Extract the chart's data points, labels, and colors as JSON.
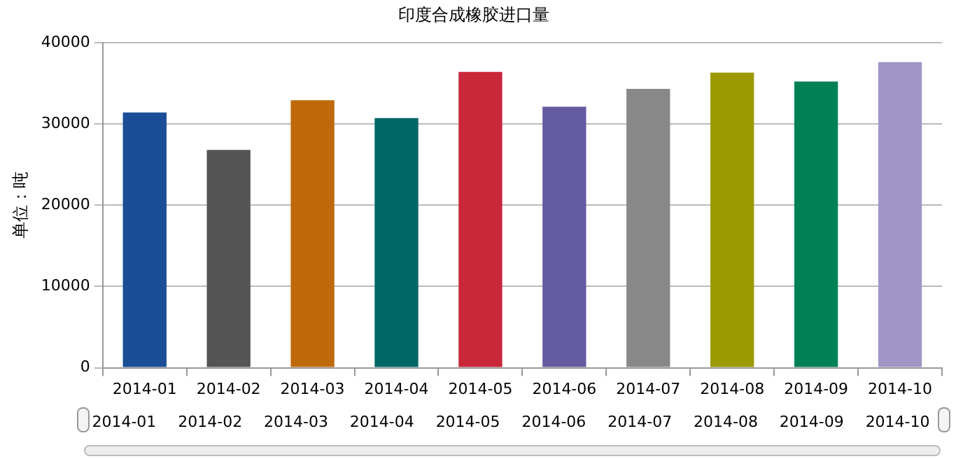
{
  "chart_data": {
    "type": "bar",
    "title": "印度合成橡胶进口量",
    "ylabel": "单位：吨",
    "categories": [
      "2014-01",
      "2014-02",
      "2014-03",
      "2014-04",
      "2014-05",
      "2014-06",
      "2014-07",
      "2014-08",
      "2014-09",
      "2014-10"
    ],
    "values": [
      31400,
      26800,
      32900,
      30700,
      36400,
      32100,
      34300,
      36300,
      35200,
      37600
    ],
    "colors": [
      "#1a4e96",
      "#555555",
      "#be6a0a",
      "#006666",
      "#c8283a",
      "#635aa0",
      "#888888",
      "#9c9a00",
      "#008055",
      "#a195c5"
    ],
    "ylim": [
      0,
      40000
    ],
    "yticks": [
      0,
      10000,
      20000,
      30000,
      40000
    ],
    "grid": "y",
    "legend": false
  }
}
